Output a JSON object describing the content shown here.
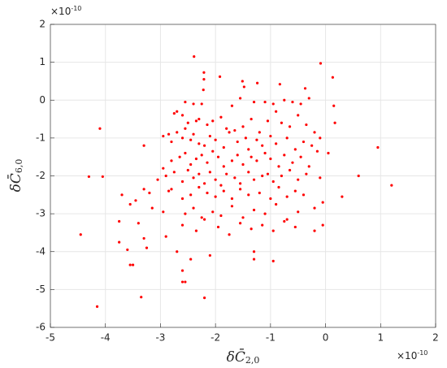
{
  "chart_data": {
    "type": "scatter",
    "x_label": "δC̄",
    "x_label_subscript": "2,0",
    "y_label": "δC̄",
    "y_label_subscript": "6,0",
    "x_multiplier": {
      "base": "×10",
      "exponent": "-10"
    },
    "y_multiplier": {
      "base": "×10",
      "exponent": "-10"
    },
    "xlim": [
      -5,
      2
    ],
    "ylim": [
      -6,
      2
    ],
    "xticks": [
      -5,
      -4,
      -3,
      -2,
      -1,
      0,
      1,
      2
    ],
    "yticks": [
      -6,
      -5,
      -4,
      -3,
      -2,
      -1,
      0,
      1,
      2
    ],
    "grid": true,
    "color": "#ff0000",
    "x": [
      -2.39,
      -2.21,
      -2.21,
      -0.09,
      0.13,
      -1.92,
      -1.51,
      -1.24,
      -0.83,
      -1.48,
      -2.22,
      -0.37,
      -2.55,
      -2.4,
      -2.25,
      -1.7,
      -1.55,
      -1.3,
      -1.1,
      -0.95,
      -0.75,
      -0.6,
      -0.45,
      -0.3,
      0.15,
      -2.75,
      -2.7,
      -2.6,
      -2.5,
      -2.35,
      -2.3,
      -2.15,
      -2.05,
      -1.9,
      -1.8,
      -1.65,
      -1.5,
      -1.35,
      -1.2,
      -1.05,
      -0.9,
      -0.8,
      -0.65,
      -0.5,
      -0.35,
      -0.2,
      0.17,
      -3.3,
      -2.95,
      -2.85,
      -2.8,
      -2.7,
      -2.6,
      -2.55,
      -2.45,
      -2.4,
      -2.3,
      -2.2,
      -2.1,
      -2.0,
      -1.85,
      -1.75,
      -1.6,
      -1.45,
      -1.4,
      -1.25,
      -1.15,
      -1.0,
      -0.9,
      -0.7,
      -0.55,
      -0.4,
      -0.25,
      -0.1,
      0.05,
      -2.95,
      -2.8,
      -2.65,
      -2.55,
      -2.45,
      -2.35,
      -2.25,
      -2.15,
      -2.05,
      -1.95,
      -1.85,
      -1.7,
      -1.6,
      -1.5,
      -1.35,
      -1.25,
      -1.1,
      -1.0,
      -0.85,
      -0.75,
      -0.6,
      -0.45,
      -0.3,
      -0.15,
      0.6,
      0.95,
      -3.05,
      -2.9,
      -2.75,
      -2.6,
      -2.5,
      -2.4,
      -2.3,
      -2.2,
      -2.1,
      -2.0,
      -1.9,
      -1.8,
      -1.65,
      -1.55,
      -1.4,
      -1.3,
      -1.15,
      -1.05,
      -0.95,
      -0.8,
      -0.65,
      -0.5,
      -0.35,
      -0.1,
      1.2,
      -2.85,
      -2.8,
      -2.6,
      -2.45,
      -2.3,
      -2.15,
      -2.0,
      -1.85,
      -1.7,
      -1.55,
      -1.4,
      -1.2,
      -1.0,
      -0.85,
      -0.7,
      -0.55,
      -0.4,
      -0.05,
      0.3,
      -3.7,
      -3.55,
      -3.45,
      -3.3,
      -3.2,
      -3.15,
      -2.95,
      -2.55,
      -2.4,
      -2.25,
      -2.05,
      -1.9,
      -1.7,
      -1.5,
      -1.3,
      -1.1,
      -0.9,
      -0.7,
      -0.5,
      -0.2,
      -3.75,
      -3.4,
      -2.9,
      -2.6,
      -2.35,
      -2.2,
      -1.95,
      -1.75,
      -1.55,
      -1.35,
      -1.15,
      -0.95,
      -0.75,
      -0.55,
      -0.05,
      -4.45,
      -4.3,
      -4.1,
      -4.05,
      -4.15,
      -3.35,
      -2.2,
      -3.75,
      -3.6,
      -3.55,
      -3.5,
      -3.3,
      -3.25,
      -2.7,
      -2.6,
      -2.55,
      -2.6,
      -2.45,
      -2.1,
      -1.3,
      -1.3,
      -0.95,
      -0.2
    ],
    "values": [
      1.15,
      0.73,
      0.55,
      0.97,
      0.6,
      0.62,
      0.5,
      0.45,
      0.42,
      0.35,
      0.27,
      0.31,
      -0.05,
      -0.1,
      -0.1,
      -0.15,
      0.05,
      -0.05,
      -0.05,
      -0.1,
      0.0,
      -0.05,
      -0.1,
      0.05,
      -0.15,
      -0.35,
      -0.3,
      -0.4,
      -0.6,
      -0.55,
      -0.5,
      -0.65,
      -0.55,
      -0.45,
      -0.75,
      -0.8,
      -0.7,
      -0.5,
      -0.85,
      -0.55,
      -0.3,
      -0.6,
      -0.7,
      -0.4,
      -0.65,
      -0.85,
      -0.6,
      -1.2,
      -0.95,
      -0.9,
      -1.1,
      -0.85,
      -1.0,
      -0.75,
      -1.05,
      -0.9,
      -1.15,
      -1.2,
      -0.95,
      -1.05,
      -1.25,
      -0.85,
      -1.1,
      -1.0,
      -1.3,
      -1.05,
      -1.2,
      -0.95,
      -1.15,
      -1.0,
      -1.3,
      -1.1,
      -1.2,
      -1.0,
      -1.4,
      -1.8,
      -1.6,
      -1.5,
      -1.4,
      -1.7,
      -1.55,
      -1.45,
      -1.65,
      -1.35,
      -1.5,
      -1.75,
      -1.6,
      -1.45,
      -1.7,
      -1.5,
      -1.6,
      -1.4,
      -1.55,
      -1.75,
      -1.45,
      -1.65,
      -1.5,
      -1.75,
      -1.35,
      -2.0,
      -1.25,
      -2.1,
      -2.0,
      -1.9,
      -2.15,
      -1.85,
      -2.05,
      -1.95,
      -2.2,
      -1.9,
      -2.1,
      -2.25,
      -1.95,
      -2.05,
      -2.2,
      -1.9,
      -2.1,
      -2.0,
      -1.95,
      -2.15,
      -2.0,
      -1.85,
      -2.1,
      -1.95,
      -2.05,
      -2.25,
      -2.4,
      -2.35,
      -2.6,
      -2.5,
      -2.3,
      -2.45,
      -2.55,
      -2.4,
      -2.6,
      -2.35,
      -2.5,
      -2.45,
      -2.6,
      -2.3,
      -2.55,
      -2.4,
      -2.5,
      -2.7,
      -2.55,
      -2.5,
      -2.75,
      -2.65,
      -2.35,
      -2.45,
      -2.85,
      -2.95,
      -3.0,
      -2.85,
      -3.1,
      -2.95,
      -3.05,
      -2.8,
      -3.1,
      -2.9,
      -3.0,
      -2.75,
      -3.15,
      -2.95,
      -2.85,
      -3.2,
      -3.25,
      -3.6,
      -3.3,
      -3.45,
      -3.15,
      -3.35,
      -3.55,
      -3.25,
      -3.4,
      -3.3,
      -3.45,
      -3.2,
      -3.35,
      -3.3,
      -3.55,
      -2.02,
      -0.75,
      -2.02,
      -5.45,
      -5.2,
      -5.22,
      -3.75,
      -3.95,
      -4.35,
      -4.35,
      -3.65,
      -3.9,
      -4.0,
      -4.8,
      -4.8,
      -4.5,
      -4.2,
      -4.1,
      -4.2,
      -4.0,
      -4.25,
      -3.45
    ]
  }
}
